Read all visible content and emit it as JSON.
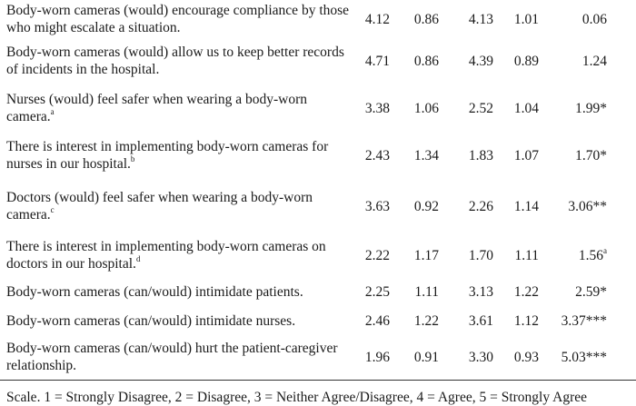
{
  "rows": [
    {
      "item": "Body-worn cameras (would) encourage compliance by those who might escalate a situation.",
      "sup": "",
      "m1": "4.12",
      "sd1": "0.86",
      "m2": "4.13",
      "sd2": "1.01",
      "stat": "0.06"
    },
    {
      "item": "Body-worn cameras (would) allow us to keep better records of incidents in the hospital.",
      "sup": "",
      "m1": "4.71",
      "sd1": "0.86",
      "m2": "4.39",
      "sd2": "0.89",
      "stat": "1.24"
    },
    {
      "item": "Nurses (would) feel safer when wearing a body-worn camera.",
      "sup": "a",
      "m1": "3.38",
      "sd1": "1.06",
      "m2": "2.52",
      "sd2": "1.04",
      "stat": "1.99*"
    },
    {
      "item": "There is interest in implementing body-worn cameras for nurses in our hospital.",
      "sup": "b",
      "m1": "2.43",
      "sd1": "1.34",
      "m2": "1.83",
      "sd2": "1.07",
      "stat": "1.70*"
    },
    {
      "item": "Doctors (would) feel safer when wearing a body-worn camera.",
      "sup": "c",
      "m1": "3.63",
      "sd1": "0.92",
      "m2": "2.26",
      "sd2": "1.14",
      "stat": "3.06**"
    },
    {
      "item": "There is interest in implementing body-worn cameras on doctors in our hospital.",
      "sup": "d",
      "m1": "2.22",
      "sd1": "1.17",
      "m2": "1.70",
      "sd2": "1.11",
      "stat": "1.56",
      "stat_sup": "a"
    },
    {
      "item": "Body-worn cameras (can/would) intimidate patients.",
      "sup": "",
      "m1": "2.25",
      "sd1": "1.11",
      "m2": "3.13",
      "sd2": "1.22",
      "stat": "2.59*"
    },
    {
      "item": "Body-worn cameras (can/would) intimidate nurses.",
      "sup": "",
      "m1": "2.46",
      "sd1": "1.22",
      "m2": "3.61",
      "sd2": "1.12",
      "stat": "3.37***"
    },
    {
      "item": "Body-worn cameras (can/would) hurt the patient-caregiver relationship.",
      "sup": "",
      "m1": "1.96",
      "sd1": "0.91",
      "m2": "3.30",
      "sd2": "0.93",
      "stat": "5.03***"
    }
  ],
  "scale_note": "Scale. 1 = Strongly Disagree, 2 = Disagree, 3 = Neither Agree/Disagree, 4 = Agree, 5 = Strongly Agree"
}
